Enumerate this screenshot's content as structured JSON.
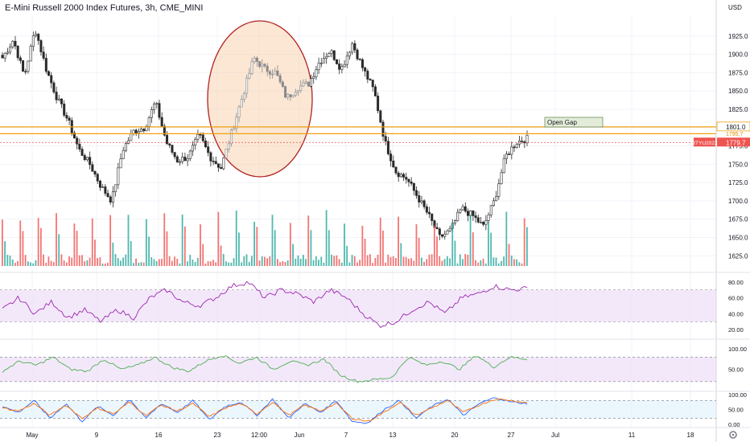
{
  "header": {
    "symbol_description": "E-Mini Russell 2000 Index Futures",
    "interval": "3h",
    "exchange": "CME_MINI",
    "currency": "USD"
  },
  "colors": {
    "up": "#26a69a",
    "down": "#ef5350",
    "ellipse_stroke": "#b22222",
    "ellipse_fill": "#f7c9a0",
    "gap_lines": "#f0a010",
    "gap_box": "#e3ecd8",
    "rsi_line": "#9c27b0",
    "rsi_band": "#e9d5f5",
    "ind2_line": "#4caf50",
    "stoch_k": "#2962ff",
    "stoch_d": "#ff6d00",
    "stoch_band": "#dceefb",
    "price_badge": "#ef5350"
  },
  "chart_data": [
    {
      "type": "candlestick",
      "ylim": [
        1610,
        1950
      ],
      "y_ticks": [
        "1925.0",
        "1900.0",
        "1875.0",
        "1850.0",
        "1825.0",
        "1800.0",
        "1775.0",
        "1750.0",
        "1725.0",
        "1700.0",
        "1675.0",
        "1650.0",
        "1625.0"
      ],
      "ohlc_anchors": [
        1895,
        1920,
        1870,
        1935,
        1880,
        1840,
        1810,
        1770,
        1750,
        1720,
        1700,
        1770,
        1795,
        1800,
        1835,
        1780,
        1755,
        1760,
        1790,
        1760,
        1745,
        1795,
        1845,
        1895,
        1880,
        1875,
        1840,
        1855,
        1860,
        1890,
        1905,
        1880,
        1915,
        1880,
        1850,
        1780,
        1740,
        1730,
        1705,
        1680,
        1650,
        1660,
        1690,
        1680,
        1665,
        1700,
        1760,
        1780,
        1785
      ],
      "last_price": "1779.7",
      "last_price_label": "RTYU2022",
      "level_label": "1801.0",
      "level_values": [
        1801,
        1796
      ],
      "hidden_level_label": "1795.7",
      "annotations": {
        "open_gap": "Open Gap"
      },
      "x_ticks": [
        "May",
        "9",
        "16",
        "23",
        "12:00",
        "Jun",
        "7",
        "13",
        "20",
        "27",
        "Jul",
        "11",
        "18"
      ],
      "volume": "volume bars shown, no scale"
    },
    {
      "type": "line",
      "name": "",
      "ylim": [
        10,
        90
      ],
      "y_ticks": [
        "80.00",
        "60.00",
        "40.00",
        "20.00"
      ],
      "band": [
        30,
        70
      ],
      "anchors": [
        45,
        60,
        40,
        55,
        35,
        45,
        30,
        45,
        35,
        60,
        70,
        55,
        50,
        60,
        75,
        80,
        60,
        70,
        65,
        55,
        70,
        60,
        40,
        25,
        30,
        45,
        55,
        40,
        60,
        65,
        75,
        70,
        72
      ]
    },
    {
      "type": "line",
      "name": "",
      "ylim": [
        0,
        120
      ],
      "y_ticks": [
        "100.00",
        "50.00"
      ],
      "band": [
        20,
        80
      ],
      "anchors": [
        45,
        70,
        60,
        80,
        50,
        45,
        75,
        50,
        60,
        80,
        55,
        45,
        70,
        85,
        65,
        80,
        50,
        70,
        60,
        75,
        35,
        20,
        25,
        30,
        80,
        60,
        70,
        50,
        85,
        55,
        80,
        75
      ]
    },
    {
      "type": "line",
      "name": "",
      "ylim": [
        -5,
        105
      ],
      "y_ticks": [
        "100.00",
        "50.00",
        "0.00"
      ],
      "band": [
        20,
        80
      ],
      "series_k_anchors": [
        60,
        40,
        80,
        20,
        70,
        10,
        60,
        30,
        85,
        20,
        70,
        40,
        80,
        15,
        60,
        75,
        30,
        85,
        20,
        70,
        40,
        80,
        10,
        5,
        50,
        80,
        20,
        60,
        85,
        30,
        70,
        90,
        75,
        70
      ],
      "series_d_anchors": [
        55,
        45,
        70,
        30,
        65,
        20,
        55,
        35,
        75,
        30,
        65,
        45,
        70,
        25,
        55,
        70,
        35,
        75,
        30,
        65,
        45,
        70,
        20,
        10,
        40,
        75,
        30,
        55,
        80,
        40,
        65,
        85,
        80,
        72
      ]
    }
  ]
}
